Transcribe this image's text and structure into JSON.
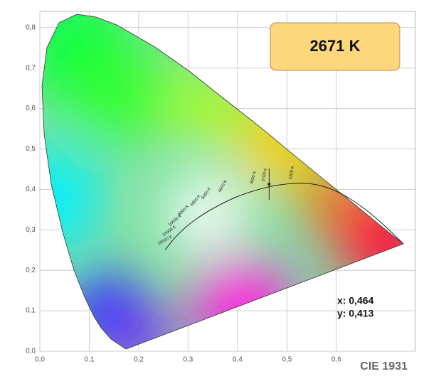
{
  "chart_data": {
    "type": "scatter",
    "title": "2671 K",
    "annotation": "CIE 1931",
    "x": [
      0.464
    ],
    "values": [
      0.413
    ],
    "value_labels": [
      "y: 0,413"
    ],
    "x_labels": [
      "x: 0,464"
    ],
    "color": "#222222",
    "xlim": [
      0,
      0.76
    ],
    "ylim": [
      0,
      0.84
    ],
    "xticks": [
      {
        "value": 0,
        "label": "0,0"
      },
      {
        "value": 0.1,
        "label": "0,1"
      },
      {
        "value": 0.2,
        "label": "0,2"
      },
      {
        "value": 0.3,
        "label": "0,3"
      },
      {
        "value": 0.4,
        "label": "0,4"
      },
      {
        "value": 0.5,
        "label": "0,5"
      },
      {
        "value": 0.6,
        "label": "0,6"
      }
    ],
    "yticks": [
      {
        "value": 0,
        "label": "0,0"
      },
      {
        "value": 0.1,
        "label": "0,1"
      },
      {
        "value": 0.2,
        "label": "0,2"
      },
      {
        "value": 0.3,
        "label": "0,3"
      },
      {
        "value": 0.4,
        "label": "0,4"
      },
      {
        "value": 0.5,
        "label": "0,5"
      },
      {
        "value": 0.6,
        "label": "0,6"
      },
      {
        "value": 0.7,
        "label": "0,7"
      },
      {
        "value": 0.8,
        "label": "0,8"
      }
    ],
    "grid": true,
    "cct_labels": [
      "2200 K",
      "2700 K",
      "3000 K",
      "4000 K",
      "5000 K",
      "6000 K",
      "8000 K",
      "10000 K",
      "15000 K",
      "20000 K"
    ]
  }
}
